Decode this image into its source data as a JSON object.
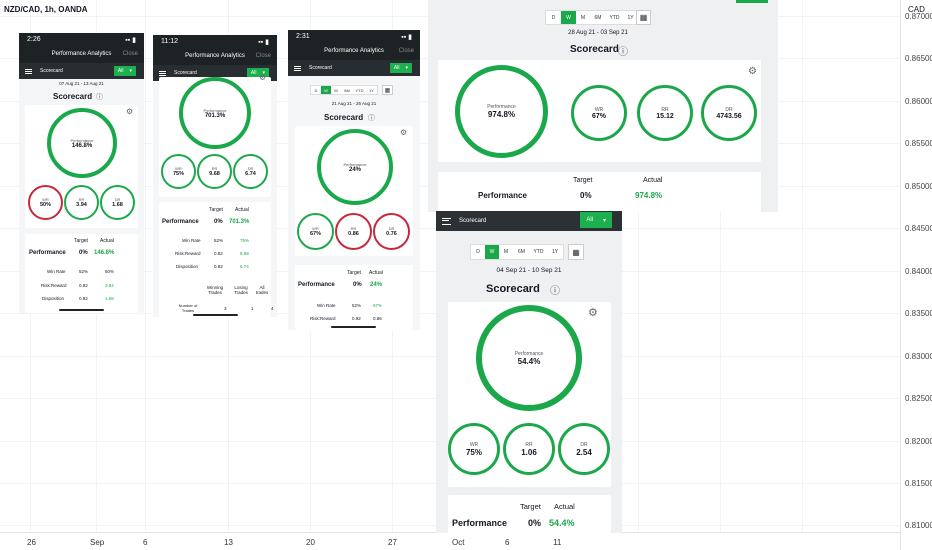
{
  "chart": {
    "symbol": "NZD/CAD, 1h, OANDA",
    "currency": "CAD",
    "price_ticks": [
      "0.87000",
      "0.86500",
      "0.86000",
      "0.85500",
      "0.85000",
      "0.84500",
      "0.84000",
      "0.83500",
      "0.83000",
      "0.82500",
      "0.82000",
      "0.81500",
      "0.81000"
    ],
    "time_ticks": [
      "26",
      "Sep",
      "6",
      "13",
      "20",
      "27",
      "Oct",
      "6",
      "11"
    ]
  },
  "colors": {
    "accent": "#1aa84a",
    "negative": "#c7293a",
    "header": "#1d2224"
  },
  "phone1": {
    "time": "2:26",
    "title": "Performance Analytics",
    "close": "Close",
    "scorecard_tab": "Scorecard",
    "filter": "All",
    "dates": "07 Aug 21 - 13 Aug 21",
    "heading": "Scorecard",
    "performance_label": "Performance",
    "performance": "146.8%",
    "wr_label": "WR",
    "wr": "50%",
    "rr_label": "RR",
    "rr": "3.94",
    "dr_label": "DR",
    "dr": "1.68",
    "target_h": "Target",
    "actual_h": "Actual",
    "perf_row": "Performance",
    "perf_target": "0%",
    "perf_actual": "146.8%",
    "rows": [
      {
        "label": "Win Rate",
        "target": "52%",
        "actual": "50%"
      },
      {
        "label": "Risk:Reward",
        "target": "0.92",
        "actual": "3.94"
      },
      {
        "label": "Disposition",
        "target": "0.92",
        "actual": "1.68"
      }
    ]
  },
  "phone2": {
    "time": "11:12",
    "title": "Performance Analytics",
    "close": "Close",
    "scorecard_tab": "Scorecard",
    "filter": "All",
    "performance_label": "Performance",
    "performance": "701.3%",
    "wr_label": "WR",
    "wr": "75%",
    "rr_label": "RR",
    "rr": "9.68",
    "dr_label": "DR",
    "dr": "6.74",
    "target_h": "Target",
    "actual_h": "Actual",
    "perf_row": "Performance",
    "perf_target": "0%",
    "perf_actual": "701.3%",
    "rows": [
      {
        "label": "Win Rate",
        "target": "52%",
        "actual": "75%"
      },
      {
        "label": "Risk:Reward",
        "target": "0.92",
        "actual": "9.68"
      },
      {
        "label": "Disposition",
        "target": "0.92",
        "actual": "6.74"
      }
    ],
    "trades_headers": [
      "Winning Trades",
      "Losing Trades",
      "All trades"
    ],
    "trades_row_label": "Number of Trades",
    "trades_values": [
      "3",
      "1",
      "4"
    ]
  },
  "phone3": {
    "time": "2:31",
    "title": "Performance Analytics",
    "close": "Close",
    "scorecard_tab": "Scorecard",
    "filter": "All",
    "periods": [
      "D",
      "W",
      "M",
      "6M",
      "YTD",
      "1Y"
    ],
    "dates": "21 Aug 21 - 26 Aug 21",
    "heading": "Scorecard",
    "performance_label": "Performance",
    "performance": "24%",
    "wr_label": "WR",
    "wr": "67%",
    "rr_label": "RR",
    "rr": "0.86",
    "dr_label": "DR",
    "dr": "0.76",
    "target_h": "Target",
    "actual_h": "Actual",
    "perf_row": "Performance",
    "perf_target": "0%",
    "perf_actual": "24%",
    "rows": [
      {
        "label": "Win Rate",
        "target": "52%",
        "actual": "67%"
      },
      {
        "label": "Risk:Reward",
        "target": "0.92",
        "actual": "0.86"
      }
    ]
  },
  "phone4": {
    "periods": [
      "D",
      "W",
      "M",
      "6M",
      "YTD",
      "1Y"
    ],
    "dates": "28 Aug 21 - 03 Sep 21",
    "heading": "Scorecard",
    "performance_label": "Performance",
    "performance": "974.8%",
    "wr_label": "WR",
    "wr": "67%",
    "rr_label": "RR",
    "rr": "15.12",
    "dr_label": "DR",
    "dr": "4743.56",
    "target_h": "Target",
    "actual_h": "Actual",
    "perf_row": "Performance",
    "perf_target": "0%",
    "perf_actual": "974.8%"
  },
  "phone5": {
    "scorecard_tab": "Scorecard",
    "filter": "All",
    "periods": [
      "D",
      "W",
      "M",
      "6M",
      "YTD",
      "1Y"
    ],
    "dates": "04 Sep 21 - 10 Sep 21",
    "heading": "Scorecard",
    "performance_label": "Performance",
    "performance": "54.4%",
    "wr_label": "WR",
    "wr": "75%",
    "rr_label": "RR",
    "rr": "1.06",
    "dr_label": "DR",
    "dr": "2.54",
    "target_h": "Target",
    "actual_h": "Actual",
    "perf_row": "Performance",
    "perf_target": "0%",
    "perf_actual": "54.4%"
  }
}
